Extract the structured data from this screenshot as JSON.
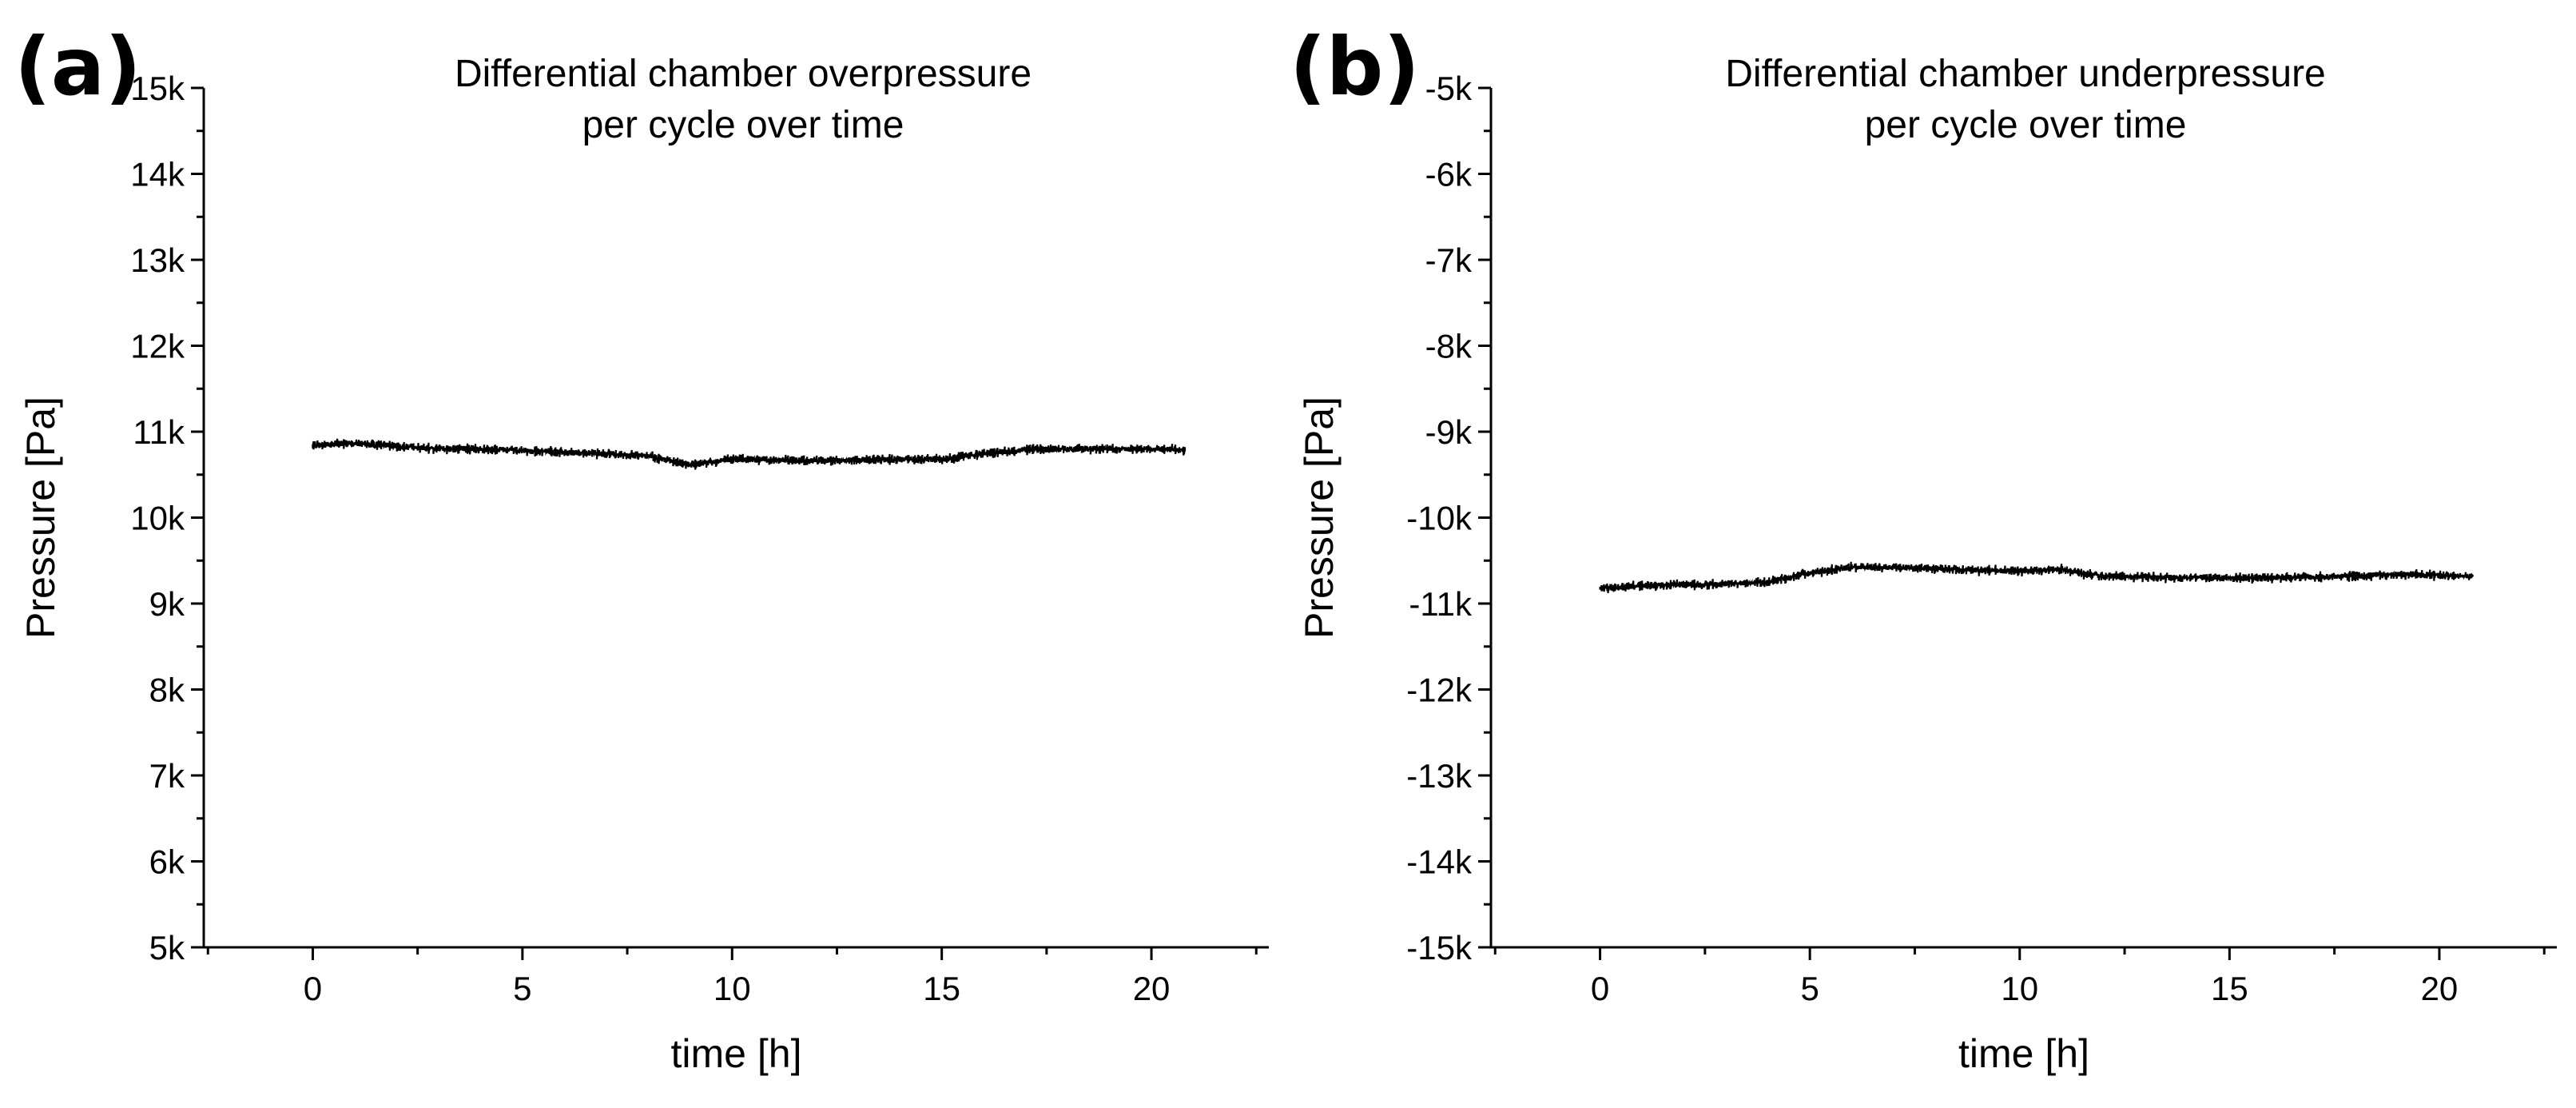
{
  "chart_data": [
    {
      "type": "line",
      "panel_label": "(a)",
      "title_lines": [
        "Differential chamber overpressure",
        "per cycle over time"
      ],
      "xlabel": "time [h]",
      "ylabel": "Pressure [Pa]",
      "xlim": [
        -2.6,
        22.8
      ],
      "ylim": [
        5000,
        15000
      ],
      "x_ticks": [
        0,
        5,
        10,
        15,
        20
      ],
      "x_tick_labels": [
        "0",
        "5",
        "10",
        "15",
        "20"
      ],
      "y_ticks": [
        5000,
        6000,
        7000,
        8000,
        9000,
        10000,
        11000,
        12000,
        13000,
        14000,
        15000
      ],
      "y_tick_labels": [
        "5k",
        "6k",
        "7k",
        "8k",
        "9k",
        "10k",
        "11k",
        "12k",
        "13k",
        "14k",
        "15k"
      ],
      "series": [
        {
          "name": "overpressure",
          "x": [
            0,
            1,
            2,
            3,
            4,
            5,
            6,
            7,
            8,
            9,
            9.5,
            10,
            11,
            12,
            13,
            14,
            15,
            16,
            17,
            18,
            19,
            20,
            20.8
          ],
          "y": [
            10840,
            10870,
            10830,
            10800,
            10800,
            10780,
            10760,
            10740,
            10720,
            10610,
            10650,
            10680,
            10670,
            10660,
            10670,
            10680,
            10680,
            10740,
            10790,
            10800,
            10800,
            10800,
            10790
          ],
          "noise": 70
        }
      ]
    },
    {
      "type": "line",
      "panel_label": "(b)",
      "title_lines": [
        "Differential chamber underpressure",
        "per cycle over time"
      ],
      "xlabel": "time [h]",
      "ylabel": "Pressure [Pa]",
      "xlim": [
        -2.6,
        22.8
      ],
      "ylim": [
        -15000,
        -5000
      ],
      "x_ticks": [
        0,
        5,
        10,
        15,
        20
      ],
      "x_tick_labels": [
        "0",
        "5",
        "10",
        "15",
        "20"
      ],
      "y_ticks": [
        -15000,
        -14000,
        -13000,
        -12000,
        -11000,
        -10000,
        -9000,
        -8000,
        -7000,
        -6000,
        -5000
      ],
      "y_tick_labels": [
        "-15k",
        "-14k",
        "-13k",
        "-12k",
        "-11k",
        "-10k",
        "-9k",
        "-8k",
        "-7k",
        "-6k",
        "-5k"
      ],
      "series": [
        {
          "name": "underpressure",
          "x": [
            0,
            1,
            2,
            3,
            4,
            5,
            6,
            7,
            8,
            9,
            10,
            11,
            11.5,
            12,
            13,
            14,
            15,
            16,
            17,
            18,
            19,
            20,
            20.8
          ],
          "y": [
            -10820,
            -10790,
            -10780,
            -10770,
            -10750,
            -10640,
            -10580,
            -10580,
            -10590,
            -10610,
            -10620,
            -10600,
            -10650,
            -10680,
            -10690,
            -10700,
            -10700,
            -10700,
            -10690,
            -10680,
            -10660,
            -10670,
            -10680
          ],
          "noise": 70
        }
      ]
    }
  ]
}
